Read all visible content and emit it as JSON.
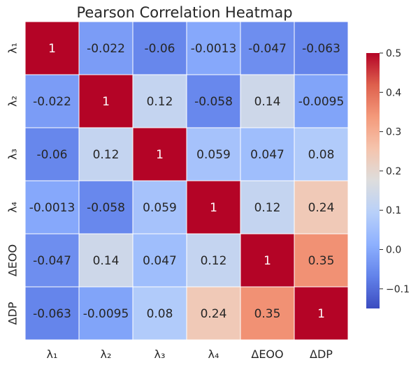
{
  "chart_data": {
    "type": "heatmap",
    "title": "Pearson Correlation Heatmap",
    "xlabel": "",
    "ylabel": "",
    "x_labels": [
      "λ₁",
      "λ₂",
      "λ₃",
      "λ₄",
      "ΔEOO",
      "ΔDP"
    ],
    "y_labels": [
      "λ₁",
      "λ₂",
      "λ₃",
      "λ₄",
      "ΔEOO",
      "ΔDP"
    ],
    "values": [
      [
        1,
        -0.022,
        -0.06,
        -0.0013,
        -0.047,
        -0.063
      ],
      [
        -0.022,
        1,
        0.12,
        -0.058,
        0.14,
        -0.0095
      ],
      [
        -0.06,
        0.12,
        1,
        0.059,
        0.047,
        0.08
      ],
      [
        -0.0013,
        -0.058,
        0.059,
        1,
        0.12,
        0.24
      ],
      [
        -0.047,
        0.14,
        0.047,
        0.12,
        1,
        0.35
      ],
      [
        -0.063,
        -0.0095,
        0.08,
        0.24,
        0.35,
        1
      ]
    ],
    "value_labels": [
      [
        "1",
        "-0.022",
        "-0.06",
        "-0.0013",
        "-0.047",
        "-0.063"
      ],
      [
        "-0.022",
        "1",
        "0.12",
        "-0.058",
        "0.14",
        "-0.0095"
      ],
      [
        "-0.06",
        "0.12",
        "1",
        "0.059",
        "0.047",
        "0.08"
      ],
      [
        "-0.0013",
        "-0.058",
        "0.059",
        "1",
        "0.12",
        "0.24"
      ],
      [
        "-0.047",
        "0.14",
        "0.047",
        "0.12",
        "1",
        "0.35"
      ],
      [
        "-0.063",
        "-0.0095",
        "0.08",
        "0.24",
        "0.35",
        "1"
      ]
    ],
    "colormap": "coolwarm",
    "vmin": -0.15,
    "vmax": 0.5,
    "colorbar_ticks": [
      0.5,
      0.4,
      0.3,
      0.2,
      0.1,
      0.0,
      -0.1
    ],
    "colorbar_tick_labels": [
      "0.5",
      "0.4",
      "0.3",
      "0.2",
      "0.1",
      "0.0",
      "−0.1"
    ],
    "grid": false,
    "cell_border_color": "#ffffff"
  }
}
